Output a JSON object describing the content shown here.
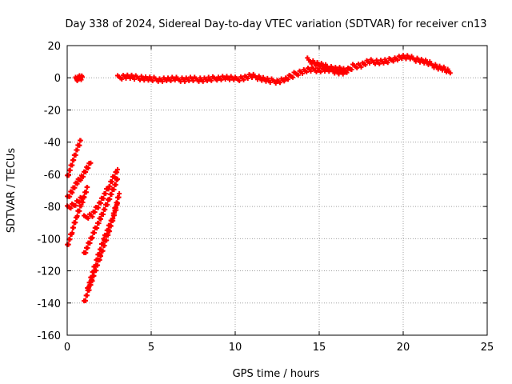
{
  "chart_data": {
    "type": "scatter",
    "title": "Day 338 of 2024, Sidereal Day-to-day VTEC variation (SDTVAR) for receiver cn13",
    "xlabel": "GPS time / hours",
    "ylabel": "SDTVAR / TECUs",
    "xlim": [
      0,
      25
    ],
    "ylim": [
      -160,
      20
    ],
    "xticks": [
      0,
      5,
      10,
      15,
      20,
      25
    ],
    "yticks": [
      -160,
      -140,
      -120,
      -100,
      -80,
      -60,
      -40,
      -20,
      0,
      20
    ],
    "grid": true,
    "marker": "+",
    "series_color": "#ff0000",
    "segments": [
      {
        "name": "leading-offset",
        "x": [
          0.5,
          0.6,
          0.7,
          0.8,
          0.9
        ],
        "y": [
          -1,
          -0.5,
          0,
          0,
          0.5
        ]
      },
      {
        "name": "main-trend",
        "x": [
          3.0,
          3.5,
          4.0,
          4.5,
          5.0,
          5.5,
          6.0,
          6.5,
          7.0,
          7.5,
          8.0,
          8.5,
          9.0,
          9.5,
          10.0,
          10.5,
          11.0,
          11.5,
          12.0,
          12.5,
          13.0,
          13.5,
          14.0,
          14.5,
          15.0,
          15.5,
          16.0,
          16.5,
          17.0,
          17.5,
          18.0,
          18.5,
          19.0,
          19.5,
          20.0,
          20.5,
          21.0,
          21.5,
          22.0,
          22.5,
          22.8
        ],
        "y": [
          0,
          1,
          0,
          0,
          -1,
          -1,
          -1,
          -1,
          -1,
          -1,
          -1,
          -1,
          0,
          0,
          -1,
          0,
          1,
          0,
          -2,
          -2,
          -1,
          2,
          4,
          5,
          5,
          5,
          4,
          3,
          7,
          8,
          10,
          10,
          10,
          12,
          13,
          12,
          11,
          9,
          7,
          5,
          3
        ]
      },
      {
        "name": "upper-band",
        "x": [
          14.3,
          14.8,
          15.3,
          15.8,
          16.3,
          16.6
        ],
        "y": [
          11,
          9,
          7,
          6,
          5,
          4
        ]
      },
      {
        "name": "early-1",
        "x": [
          0,
          0.3,
          0.6,
          0.8
        ],
        "y": [
          -62,
          -53,
          -44,
          -39
        ]
      },
      {
        "name": "early-2",
        "x": [
          0,
          0.3,
          0.6,
          0.9,
          1.2,
          1.4
        ],
        "y": [
          -75,
          -70,
          -65,
          -61,
          -56,
          -53
        ]
      },
      {
        "name": "early-3",
        "x": [
          0,
          0.5,
          1.0
        ],
        "y": [
          -81,
          -78,
          -74
        ]
      },
      {
        "name": "early-4",
        "x": [
          0,
          0.3,
          0.6,
          0.9,
          1.2
        ],
        "y": [
          -105,
          -95,
          -85,
          -77,
          -68
        ]
      },
      {
        "name": "early-5",
        "x": [
          1.0,
          1.5,
          2.0,
          2.5,
          3.0
        ],
        "y": [
          -87,
          -85,
          -77,
          -67,
          -57
        ]
      },
      {
        "name": "early-6",
        "x": [
          1.0,
          1.5,
          2.0,
          2.5,
          3.0
        ],
        "y": [
          -110,
          -98,
          -87,
          -75,
          -63
        ]
      },
      {
        "name": "early-7",
        "x": [
          1.0,
          1.5,
          2.0,
          2.5,
          3.0
        ],
        "y": [
          -140,
          -125,
          -110,
          -95,
          -78
        ]
      },
      {
        "name": "early-8",
        "x": [
          1.2,
          1.7,
          2.2,
          2.7,
          3.1
        ],
        "y": [
          -132,
          -115,
          -100,
          -87,
          -72
        ]
      }
    ]
  }
}
